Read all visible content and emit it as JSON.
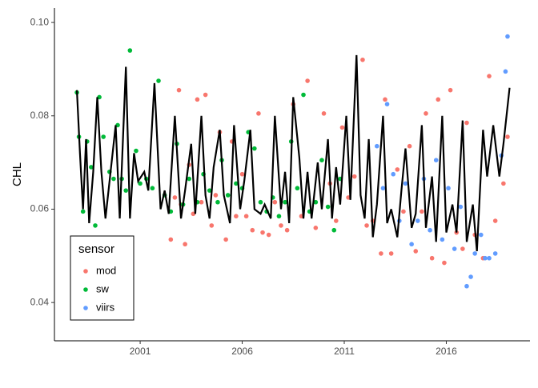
{
  "chart_data": {
    "type": "scatter",
    "y_label": "CHL",
    "legend_title": "sensor",
    "legend_position": "bottom-left",
    "xlim": [
      1996.8,
      2020.1
    ],
    "xticks": [
      2001,
      2006,
      2011,
      2016
    ],
    "ylim": [
      0.0318,
      0.1031
    ],
    "yticks": [
      {
        "value": 0.04,
        "label": "0.04"
      },
      {
        "value": 0.06,
        "label": "0.06"
      },
      {
        "value": 0.08,
        "label": "0.08"
      },
      {
        "value": 0.1,
        "label": "0.10"
      }
    ],
    "series": [
      {
        "name": "mod",
        "color": "#F8766D",
        "type": "scatter",
        "x": [
          2002.5,
          2002.7,
          2002.9,
          2003.0,
          2003.2,
          2003.4,
          2003.6,
          2003.8,
          2004.0,
          2004.2,
          2004.5,
          2004.7,
          2004.9,
          2005.2,
          2005.5,
          2005.7,
          2006.0,
          2006.2,
          2006.5,
          2006.8,
          2007.0,
          2007.3,
          2007.6,
          2007.9,
          2008.2,
          2008.5,
          2008.9,
          2009.2,
          2009.6,
          2010.0,
          2010.3,
          2010.6,
          2010.9,
          2011.2,
          2011.5,
          2011.9,
          2012.1,
          2012.4,
          2012.8,
          2013.0,
          2013.3,
          2013.6,
          2013.9,
          2014.2,
          2014.5,
          2014.8,
          2015.0,
          2015.3,
          2015.6,
          2015.9,
          2016.2,
          2016.5,
          2016.8,
          2017.0,
          2017.4,
          2017.8,
          2018.1,
          2018.4,
          2018.8,
          2019.0
        ],
        "values": [
          0.0535,
          0.0625,
          0.0855,
          0.061,
          0.0525,
          0.0695,
          0.059,
          0.0835,
          0.0615,
          0.0845,
          0.0565,
          0.063,
          0.0765,
          0.0535,
          0.0745,
          0.0585,
          0.0675,
          0.0585,
          0.0555,
          0.0805,
          0.055,
          0.0545,
          0.0615,
          0.0565,
          0.0555,
          0.0825,
          0.0585,
          0.0875,
          0.056,
          0.0805,
          0.0655,
          0.0575,
          0.0775,
          0.0625,
          0.067,
          0.092,
          0.0565,
          0.0575,
          0.0505,
          0.0835,
          0.0505,
          0.0685,
          0.0595,
          0.0735,
          0.051,
          0.0595,
          0.0805,
          0.0495,
          0.0835,
          0.0485,
          0.0855,
          0.055,
          0.0515,
          0.0785,
          0.0545,
          0.0495,
          0.0885,
          0.0575,
          0.0655,
          0.0755
        ]
      },
      {
        "name": "sw",
        "color": "#00BA38",
        "type": "scatter",
        "x": [
          1997.9,
          1998.0,
          1998.2,
          1998.4,
          1998.6,
          1998.8,
          1999.0,
          1999.2,
          1999.5,
          1999.7,
          1999.9,
          2000.1,
          2000.3,
          2000.5,
          2000.8,
          2001.0,
          2001.3,
          2001.6,
          2001.9,
          2002.2,
          2002.5,
          2002.8,
          2003.1,
          2003.4,
          2003.8,
          2004.1,
          2004.4,
          2004.8,
          2005.0,
          2005.3,
          2005.7,
          2006.0,
          2006.3,
          2006.6,
          2006.9,
          2007.2,
          2007.5,
          2007.8,
          2008.1,
          2008.4,
          2008.7,
          2009.0,
          2009.3,
          2009.6,
          2009.9,
          2010.2,
          2010.5,
          2010.8
        ],
        "values": [
          0.085,
          0.0755,
          0.0595,
          0.0745,
          0.069,
          0.0565,
          0.084,
          0.0755,
          0.068,
          0.0665,
          0.078,
          0.0665,
          0.064,
          0.094,
          0.0725,
          0.0655,
          0.0665,
          0.0645,
          0.0875,
          0.063,
          0.0595,
          0.074,
          0.061,
          0.0665,
          0.0615,
          0.0675,
          0.064,
          0.0615,
          0.0705,
          0.063,
          0.0655,
          0.0645,
          0.0765,
          0.073,
          0.0615,
          0.0595,
          0.0625,
          0.0585,
          0.0615,
          0.0745,
          0.0645,
          0.0845,
          0.0595,
          0.0615,
          0.0705,
          0.0605,
          0.0555,
          0.0665
        ]
      },
      {
        "name": "viirs",
        "color": "#619CFF",
        "type": "scatter",
        "x": [
          2012.6,
          2012.9,
          2013.1,
          2013.4,
          2013.7,
          2014.0,
          2014.3,
          2014.6,
          2014.9,
          2015.2,
          2015.5,
          2015.8,
          2016.1,
          2016.4,
          2016.7,
          2017.0,
          2017.2,
          2017.4,
          2017.7,
          2017.9,
          2018.1,
          2018.4,
          2018.7,
          2018.9,
          2019.0
        ],
        "values": [
          0.0735,
          0.0645,
          0.0825,
          0.0675,
          0.0575,
          0.0655,
          0.0525,
          0.0575,
          0.0665,
          0.0555,
          0.0705,
          0.0535,
          0.0645,
          0.0515,
          0.0605,
          0.0435,
          0.0455,
          0.0505,
          0.0545,
          0.0495,
          0.0495,
          0.0505,
          0.0715,
          0.0895,
          0.097
        ]
      },
      {
        "color": "#000000",
        "type": "line",
        "x": [
          1997.9,
          1998.05,
          1998.2,
          1998.35,
          1998.5,
          1998.7,
          1998.9,
          1999.1,
          1999.3,
          1999.5,
          1999.8,
          2000.0,
          2000.3,
          2000.5,
          2000.7,
          2000.9,
          2001.2,
          2001.4,
          2001.7,
          2002.0,
          2002.2,
          2002.4,
          2002.7,
          2003.0,
          2003.2,
          2003.5,
          2003.7,
          2004.0,
          2004.2,
          2004.4,
          2004.6,
          2004.9,
          2005.1,
          2005.4,
          2005.6,
          2005.9,
          2006.1,
          2006.4,
          2006.6,
          2006.9,
          2007.1,
          2007.4,
          2007.6,
          2007.9,
          2008.1,
          2008.3,
          2008.5,
          2008.8,
          2009.0,
          2009.2,
          2009.4,
          2009.7,
          2009.9,
          2010.2,
          2010.4,
          2010.6,
          2010.8,
          2011.1,
          2011.3,
          2011.6,
          2011.8,
          2012.0,
          2012.2,
          2012.4,
          2012.6,
          2012.9,
          2013.1,
          2013.3,
          2013.6,
          2013.8,
          2014.0,
          2014.3,
          2014.5,
          2014.8,
          2015.0,
          2015.3,
          2015.5,
          2015.8,
          2016.0,
          2016.3,
          2016.5,
          2016.8,
          2017.0,
          2017.3,
          2017.5,
          2017.8,
          2018.0,
          2018.3,
          2018.6,
          2018.8,
          2019.1
        ],
        "values": [
          0.0855,
          0.072,
          0.06,
          0.075,
          0.057,
          0.068,
          0.084,
          0.068,
          0.058,
          0.066,
          0.078,
          0.058,
          0.0905,
          0.058,
          0.072,
          0.066,
          0.068,
          0.064,
          0.087,
          0.06,
          0.064,
          0.059,
          0.08,
          0.058,
          0.064,
          0.074,
          0.059,
          0.08,
          0.063,
          0.058,
          0.069,
          0.077,
          0.063,
          0.057,
          0.078,
          0.06,
          0.066,
          0.077,
          0.06,
          0.059,
          0.061,
          0.058,
          0.08,
          0.06,
          0.068,
          0.057,
          0.084,
          0.071,
          0.058,
          0.068,
          0.058,
          0.07,
          0.06,
          0.075,
          0.058,
          0.069,
          0.061,
          0.08,
          0.062,
          0.093,
          0.063,
          0.058,
          0.075,
          0.054,
          0.061,
          0.08,
          0.057,
          0.06,
          0.054,
          0.064,
          0.073,
          0.056,
          0.059,
          0.078,
          0.056,
          0.067,
          0.053,
          0.08,
          0.055,
          0.061,
          0.055,
          0.079,
          0.053,
          0.061,
          0.051,
          0.077,
          0.067,
          0.078,
          0.067,
          0.074,
          0.086
        ]
      }
    ]
  }
}
